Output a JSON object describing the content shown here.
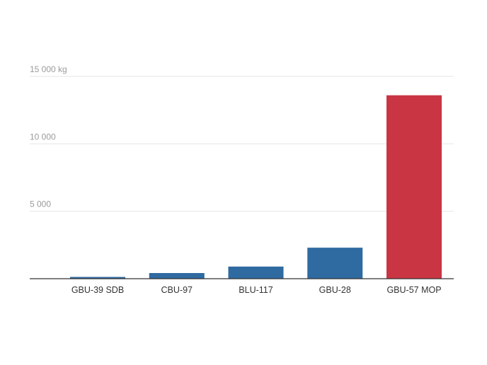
{
  "chart_data": {
    "type": "bar",
    "categories": [
      "GBU-39 SDB",
      "CBU-97",
      "BLU-117",
      "GBU-28",
      "GBU-57 MOP"
    ],
    "values": [
      130,
      420,
      900,
      2300,
      13600
    ],
    "ylim": [
      0,
      15000
    ],
    "y_ticks": [
      {
        "value": 5000,
        "label": "5 000"
      },
      {
        "value": 10000,
        "label": "10 000"
      },
      {
        "value": 15000,
        "label": "15 000 kg"
      }
    ],
    "grid": true,
    "legend": "none",
    "title": "",
    "xlabel": "",
    "ylabel": ""
  },
  "colors": {
    "default_bar": "#2f6aa1",
    "highlight_bar": "#c93542",
    "highlight_category": "GBU-57 MOP"
  }
}
